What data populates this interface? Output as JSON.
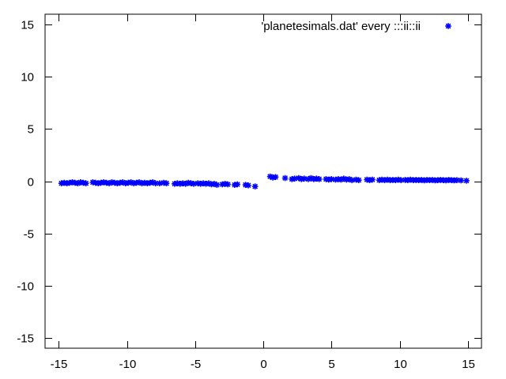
{
  "chart_data": {
    "type": "scatter",
    "title": "",
    "xlabel": "",
    "ylabel": "",
    "xlim": [
      -16,
      16
    ],
    "ylim": [
      -16,
      16
    ],
    "xticks": [
      -15,
      -10,
      -5,
      0,
      5,
      10,
      15
    ],
    "yticks": [
      -15,
      -10,
      -5,
      0,
      5,
      10,
      15
    ],
    "xtick_labels": [
      "-15",
      "-10",
      "-5",
      "0",
      "5",
      "10",
      "15"
    ],
    "ytick_labels": [
      "-15",
      "-10",
      "-5",
      "0",
      "5",
      "10",
      "15"
    ],
    "grid": false,
    "legend_position": "top-right",
    "marker": "star",
    "series": [
      {
        "name": "'planetesimals.dat' every :::ii::ii",
        "color": "#0000ff",
        "points": [
          [
            -14.8,
            -0.2
          ],
          [
            -14.6,
            -0.15
          ],
          [
            -14.4,
            -0.2
          ],
          [
            -14.2,
            -0.15
          ],
          [
            -14.0,
            -0.1
          ],
          [
            -13.8,
            -0.15
          ],
          [
            -13.6,
            -0.2
          ],
          [
            -13.4,
            -0.1
          ],
          [
            -13.2,
            -0.15
          ],
          [
            -13.0,
            -0.2
          ],
          [
            -12.5,
            -0.1
          ],
          [
            -12.3,
            -0.15
          ],
          [
            -12.1,
            -0.2
          ],
          [
            -11.9,
            -0.15
          ],
          [
            -11.7,
            -0.1
          ],
          [
            -11.5,
            -0.15
          ],
          [
            -11.3,
            -0.2
          ],
          [
            -11.1,
            -0.1
          ],
          [
            -10.9,
            -0.15
          ],
          [
            -10.7,
            -0.2
          ],
          [
            -10.5,
            -0.15
          ],
          [
            -10.3,
            -0.1
          ],
          [
            -10.1,
            -0.2
          ],
          [
            -9.9,
            -0.15
          ],
          [
            -9.7,
            -0.1
          ],
          [
            -9.5,
            -0.2
          ],
          [
            -9.3,
            -0.15
          ],
          [
            -9.1,
            -0.1
          ],
          [
            -8.9,
            -0.2
          ],
          [
            -8.7,
            -0.15
          ],
          [
            -8.5,
            -0.2
          ],
          [
            -8.3,
            -0.15
          ],
          [
            -8.1,
            -0.1
          ],
          [
            -7.9,
            -0.2
          ],
          [
            -7.6,
            -0.2
          ],
          [
            -7.3,
            -0.15
          ],
          [
            -7.1,
            -0.2
          ],
          [
            -6.5,
            -0.25
          ],
          [
            -6.3,
            -0.2
          ],
          [
            -6.1,
            -0.25
          ],
          [
            -5.9,
            -0.2
          ],
          [
            -5.7,
            -0.25
          ],
          [
            -5.5,
            -0.15
          ],
          [
            -5.3,
            -0.2
          ],
          [
            -5.1,
            -0.25
          ],
          [
            -4.8,
            -0.2
          ],
          [
            -4.6,
            -0.25
          ],
          [
            -4.4,
            -0.2
          ],
          [
            -4.2,
            -0.25
          ],
          [
            -4.0,
            -0.2
          ],
          [
            -3.8,
            -0.3
          ],
          [
            -3.6,
            -0.25
          ],
          [
            -3.4,
            -0.35
          ],
          [
            -3.0,
            -0.3
          ],
          [
            -2.8,
            -0.25
          ],
          [
            -2.6,
            -0.3
          ],
          [
            -2.1,
            -0.35
          ],
          [
            -1.9,
            -0.3
          ],
          [
            -1.3,
            -0.35
          ],
          [
            -1.1,
            -0.4
          ],
          [
            -0.6,
            -0.5
          ],
          [
            0.5,
            0.45
          ],
          [
            0.7,
            0.35
          ],
          [
            0.9,
            0.4
          ],
          [
            1.6,
            0.3
          ],
          [
            2.1,
            0.2
          ],
          [
            2.3,
            0.25
          ],
          [
            2.6,
            0.3
          ],
          [
            2.8,
            0.2
          ],
          [
            3.0,
            0.25
          ],
          [
            3.3,
            0.2
          ],
          [
            3.5,
            0.3
          ],
          [
            3.7,
            0.2
          ],
          [
            3.9,
            0.25
          ],
          [
            4.1,
            0.2
          ],
          [
            4.6,
            0.2
          ],
          [
            4.8,
            0.15
          ],
          [
            5.0,
            0.2
          ],
          [
            5.3,
            0.15
          ],
          [
            5.5,
            0.2
          ],
          [
            5.7,
            0.15
          ],
          [
            5.9,
            0.25
          ],
          [
            6.1,
            0.15
          ],
          [
            6.3,
            0.2
          ],
          [
            6.5,
            0.1
          ],
          [
            6.8,
            0.15
          ],
          [
            7.0,
            0.1
          ],
          [
            7.6,
            0.15
          ],
          [
            7.8,
            0.1
          ],
          [
            8.0,
            0.15
          ],
          [
            8.5,
            0.1
          ],
          [
            8.7,
            0.15
          ],
          [
            8.9,
            0.1
          ],
          [
            9.1,
            0.15
          ],
          [
            9.3,
            0.1
          ],
          [
            9.5,
            0.12
          ],
          [
            9.7,
            0.1
          ],
          [
            9.9,
            0.15
          ],
          [
            10.1,
            0.1
          ],
          [
            10.4,
            0.12
          ],
          [
            10.6,
            0.1
          ],
          [
            10.8,
            0.15
          ],
          [
            11.0,
            0.1
          ],
          [
            11.2,
            0.12
          ],
          [
            11.4,
            0.1
          ],
          [
            11.6,
            0.12
          ],
          [
            11.8,
            0.08
          ],
          [
            12.0,
            0.12
          ],
          [
            12.2,
            0.1
          ],
          [
            12.4,
            0.12
          ],
          [
            12.6,
            0.08
          ],
          [
            12.8,
            0.1
          ],
          [
            13.0,
            0.12
          ],
          [
            13.2,
            0.1
          ],
          [
            13.4,
            0.08
          ],
          [
            13.6,
            0.12
          ],
          [
            13.8,
            0.1
          ],
          [
            14.0,
            0.08
          ],
          [
            14.2,
            0.1
          ],
          [
            14.5,
            0.08
          ],
          [
            14.9,
            0.05
          ]
        ]
      }
    ]
  }
}
